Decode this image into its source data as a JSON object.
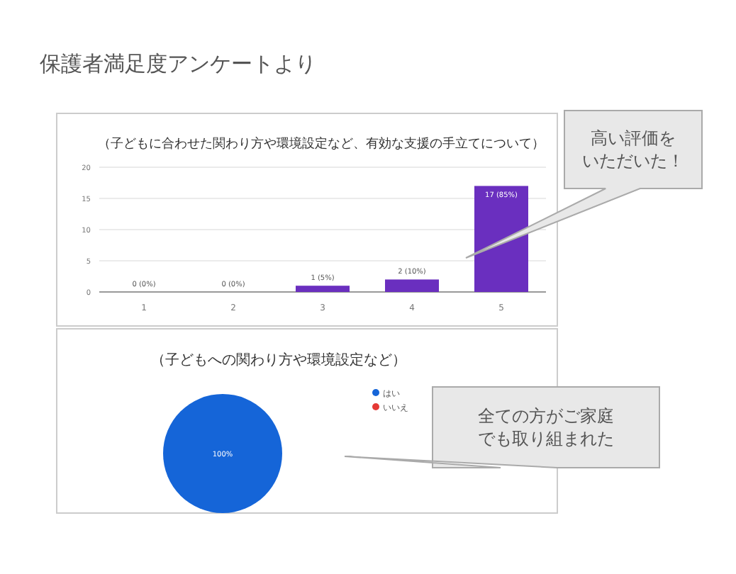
{
  "chart_data": [
    {
      "type": "bar",
      "title": "保護者満足度アンケートより",
      "subtitle": "（子どもに合わせた関わり方や環境設定など、有効な支援の手立てについて）",
      "categories": [
        "1",
        "2",
        "3",
        "4",
        "5"
      ],
      "series": [
        {
          "color": "#6a2fbf",
          "values": [
            0,
            0,
            1,
            2,
            17
          ]
        }
      ],
      "value_labels": [
        "0 (0%)",
        "0 (0%)",
        "1 (5%)",
        "2 (10%)",
        "17 (85%)"
      ],
      "ylim": [
        0,
        20
      ],
      "yticks": [
        0,
        5,
        10,
        15,
        20
      ],
      "grid": "y",
      "annotations": [
        "高い評価をいただいた！"
      ]
    },
    {
      "type": "pie",
      "title": "（子どもへの関わり方や環境設定など）",
      "categories": [
        "はい",
        "いいえ"
      ],
      "values": [
        100,
        0
      ],
      "colors": [
        "#1565d8",
        "#e53935"
      ],
      "value_labels": [
        "100%",
        null
      ],
      "legend": "right",
      "annotations": [
        "全ての方がご家庭でも取り組まれた"
      ]
    }
  ]
}
